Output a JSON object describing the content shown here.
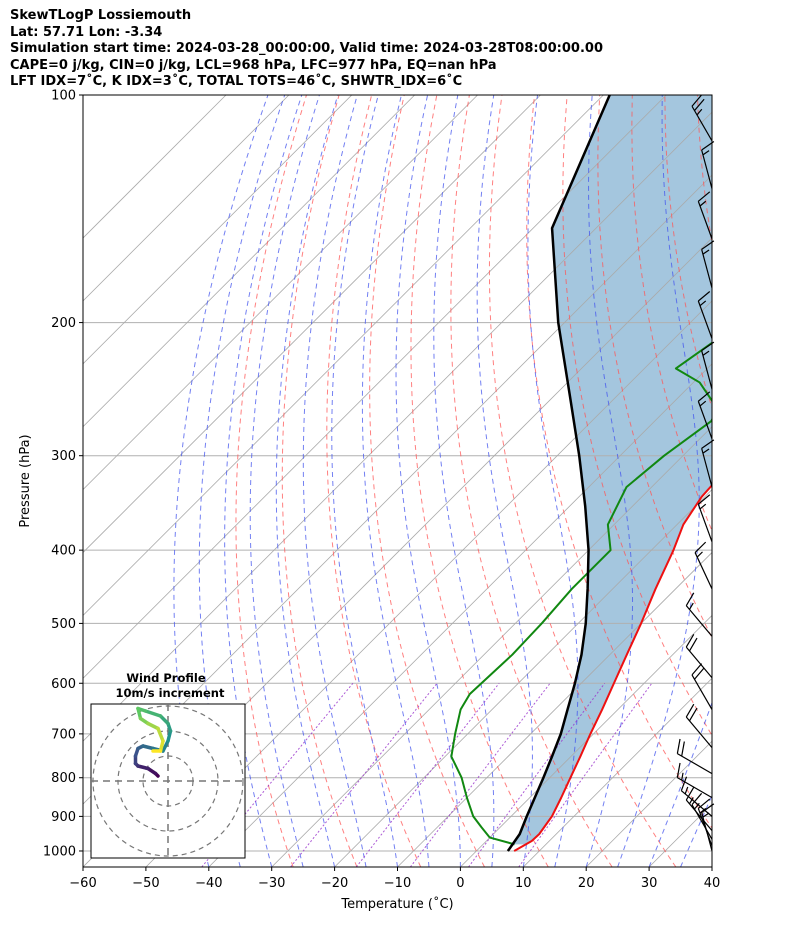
{
  "header": {
    "line1": "SkewTLogP Lossiemouth",
    "line2": "Lat: 57.71   Lon: -3.34",
    "line3": "Simulation start time: 2024-03-28_00:00:00, Valid time: 2024-03-28T08:00:00.00",
    "line4": "CAPE=0 j/kg, CIN=0 j/kg, LCL=968 hPa, LFC=977 hPa, EQ=nan hPa",
    "line5": "LFT IDX=7˚C, K IDX=3˚C, TOTAL TOTS=46˚C, SHWTR_IDX=6˚C"
  },
  "axes": {
    "xlabel": "Temperature (˚C)",
    "ylabel": "Pressure (hPa)",
    "x_ticks": [
      "−60",
      "−50",
      "−40",
      "−30",
      "−20",
      "−10",
      "0",
      "10",
      "20",
      "30",
      "40"
    ],
    "y_ticks": [
      "100",
      "200",
      "300",
      "400",
      "500",
      "600",
      "700",
      "800",
      "900",
      "1000"
    ]
  },
  "inset": {
    "title_line1": "Wind Profile",
    "title_line2": "10m/s increment"
  },
  "chart_data": {
    "type": "line",
    "subtype": "skew-T log-P",
    "xlim": [
      -60,
      40
    ],
    "ylim_hPa": [
      1050,
      100
    ],
    "y_scale": "log",
    "grid": true,
    "colors": {
      "temperature": "#ee1111",
      "dewpoint": "#118811",
      "parcel": "#000000",
      "cape_fill": "#a4c6de",
      "dry_adiabat": "#ff5555",
      "moist_adiabat": "#4455ee",
      "isotherm": "#aaaaaa",
      "mixing_ratio": "#9933cc"
    },
    "series": [
      {
        "name": "temperature",
        "points": [
          [
            1000,
            6
          ],
          [
            970,
            7.2
          ],
          [
            950,
            7.3
          ],
          [
            900,
            6.5
          ],
          [
            850,
            5
          ],
          [
            800,
            3.3
          ],
          [
            750,
            1.5
          ],
          [
            700,
            -0.5
          ],
          [
            650,
            -2.5
          ],
          [
            600,
            -4.8
          ],
          [
            550,
            -7.3
          ],
          [
            500,
            -10
          ],
          [
            450,
            -13.2
          ],
          [
            400,
            -16.5
          ],
          [
            370,
            -19
          ],
          [
            340,
            -20.5
          ],
          [
            310,
            -21
          ],
          [
            290,
            -20.5
          ],
          [
            270,
            -19.5
          ],
          [
            255,
            -17.5
          ],
          [
            240,
            -14
          ],
          [
            230,
            -11.5
          ],
          [
            215,
            -11
          ],
          [
            200,
            -10.5
          ],
          [
            180,
            -10
          ],
          [
            160,
            -8.5
          ],
          [
            140,
            -7
          ],
          [
            120,
            -7
          ],
          [
            110,
            -7.5
          ],
          [
            100,
            -6
          ]
        ]
      },
      {
        "name": "dewpoint",
        "points": [
          [
            980,
            5
          ],
          [
            960,
            0
          ],
          [
            930,
            -3
          ],
          [
            900,
            -6
          ],
          [
            850,
            -10
          ],
          [
            800,
            -14
          ],
          [
            750,
            -19
          ],
          [
            700,
            -22
          ],
          [
            650,
            -25
          ],
          [
            620,
            -26
          ],
          [
            550,
            -25.5
          ],
          [
            500,
            -25.8
          ],
          [
            450,
            -26.5
          ],
          [
            420,
            -26.5
          ],
          [
            400,
            -26.5
          ],
          [
            370,
            -31
          ],
          [
            330,
            -34
          ],
          [
            300,
            -33
          ],
          [
            270,
            -31
          ],
          [
            260,
            -32
          ],
          [
            240,
            -39
          ],
          [
            230,
            -45
          ],
          [
            200,
            -42
          ],
          [
            150,
            -33
          ],
          [
            100,
            -20
          ]
        ]
      },
      {
        "name": "parcel",
        "points": [
          [
            1000,
            5
          ],
          [
            950,
            4.2
          ],
          [
            900,
            2.5
          ],
          [
            850,
            0.8
          ],
          [
            800,
            -1
          ],
          [
            750,
            -3
          ],
          [
            700,
            -5.2
          ],
          [
            650,
            -8
          ],
          [
            600,
            -11
          ],
          [
            550,
            -14.5
          ],
          [
            500,
            -18.8
          ],
          [
            450,
            -24
          ],
          [
            400,
            -30
          ],
          [
            350,
            -37.5
          ],
          [
            300,
            -46.5
          ],
          [
            250,
            -57.5
          ],
          [
            200,
            -71
          ],
          [
            150,
            -87
          ],
          [
            100,
            -99
          ]
        ]
      }
    ],
    "wind_profile": {
      "ring_increment_ms": 10,
      "hodograph_uv": [
        [
          -4,
          2
        ],
        [
          -5,
          3
        ],
        [
          -8,
          5
        ],
        [
          -12,
          6
        ],
        [
          -13,
          7
        ],
        [
          -13,
          10
        ],
        [
          -12,
          13
        ],
        [
          -10,
          14
        ],
        [
          -6,
          13
        ],
        [
          -2,
          12
        ],
        [
          0,
          16
        ],
        [
          1,
          20
        ],
        [
          0,
          23
        ],
        [
          -3,
          26
        ],
        [
          -9,
          28
        ],
        [
          -12,
          29
        ],
        [
          -11,
          25
        ],
        [
          -8,
          23
        ],
        [
          -4,
          21
        ],
        [
          -2,
          16
        ],
        [
          -3,
          12
        ],
        [
          -6,
          12
        ]
      ]
    },
    "wind_barbs": [
      {
        "p": 1000,
        "speed_kt": 15,
        "dir_deg": 345
      },
      {
        "p": 985,
        "speed_kt": 15,
        "dir_deg": 340
      },
      {
        "p": 965,
        "speed_kt": 15,
        "dir_deg": 330
      },
      {
        "p": 940,
        "speed_kt": 15,
        "dir_deg": 320
      },
      {
        "p": 900,
        "speed_kt": 15,
        "dir_deg": 310
      },
      {
        "p": 850,
        "speed_kt": 15,
        "dir_deg": 300
      },
      {
        "p": 790,
        "speed_kt": 20,
        "dir_deg": 300
      },
      {
        "p": 730,
        "speed_kt": 20,
        "dir_deg": 320
      },
      {
        "p": 650,
        "speed_kt": 20,
        "dir_deg": 330
      },
      {
        "p": 590,
        "speed_kt": 20,
        "dir_deg": 320
      },
      {
        "p": 520,
        "speed_kt": 15,
        "dir_deg": 320
      },
      {
        "p": 450,
        "speed_kt": 15,
        "dir_deg": 335
      },
      {
        "p": 390,
        "speed_kt": 15,
        "dir_deg": 340
      },
      {
        "p": 330,
        "speed_kt": 15,
        "dir_deg": 345
      },
      {
        "p": 285,
        "speed_kt": 15,
        "dir_deg": 340
      },
      {
        "p": 245,
        "speed_kt": 15,
        "dir_deg": 345
      },
      {
        "p": 210,
        "speed_kt": 15,
        "dir_deg": 340
      },
      {
        "p": 180,
        "speed_kt": 15,
        "dir_deg": 345
      },
      {
        "p": 155,
        "speed_kt": 15,
        "dir_deg": 340
      },
      {
        "p": 133,
        "speed_kt": 15,
        "dir_deg": 345
      },
      {
        "p": 115,
        "speed_kt": 25,
        "dir_deg": 330
      }
    ]
  }
}
